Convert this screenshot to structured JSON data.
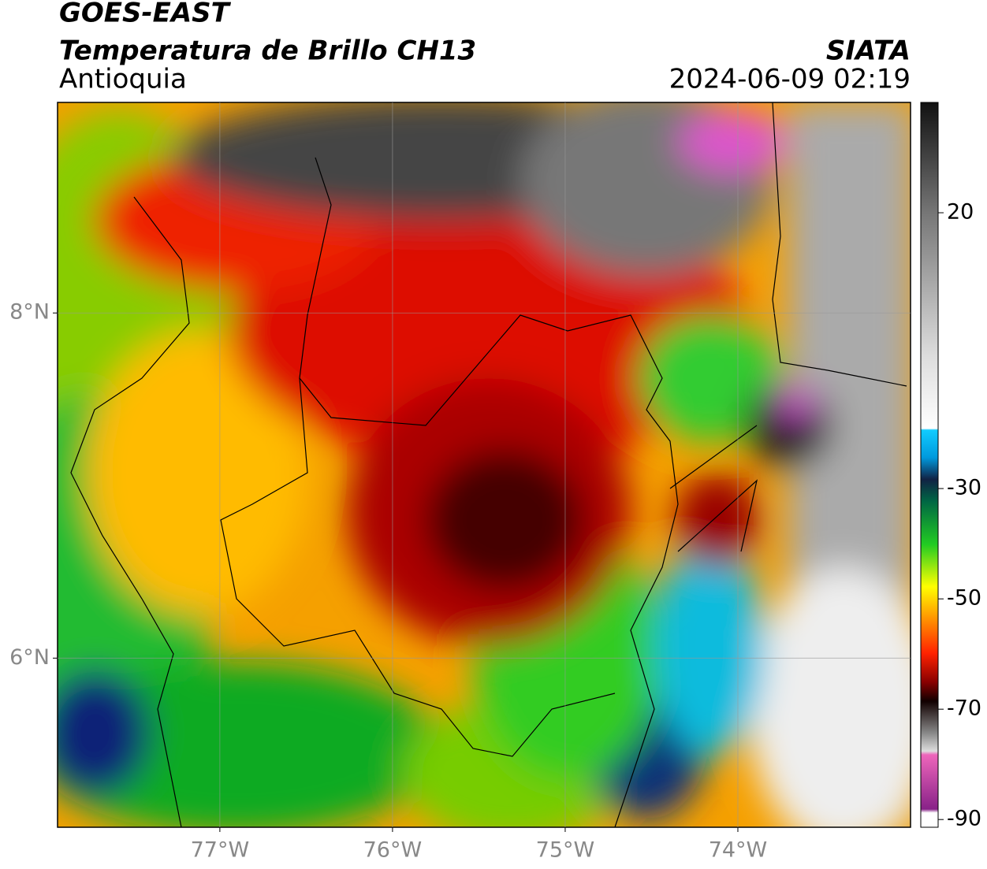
{
  "map": {
    "title": "GOES-EAST",
    "subtitle": "Temperatura de Brillo CH13",
    "region": "Antioquia",
    "source": "SIATA",
    "datetime": "2024-06-09 02:19",
    "xlim": [
      -77.94,
      -73.0
    ],
    "ylim": [
      5.02,
      9.22
    ],
    "xticks": [
      {
        "value": -77,
        "label": "77°W"
      },
      {
        "value": -76,
        "label": "76°W"
      },
      {
        "value": -75,
        "label": "75°W"
      },
      {
        "value": -74,
        "label": "74°W"
      }
    ],
    "yticks": [
      {
        "value": 6,
        "label": "6°N"
      },
      {
        "value": 8,
        "label": "8°N"
      }
    ],
    "grid": true,
    "colorbar": {
      "clim": [
        -91.4,
        40
      ],
      "ticks": [
        20,
        -30,
        -50,
        -70,
        -90
      ]
    }
  }
}
